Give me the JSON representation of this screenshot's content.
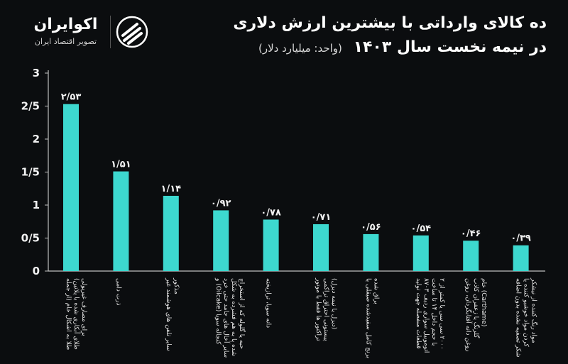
{
  "header": {
    "title_line1": "ده کالای وارداتی با بیشترین ارزش دلاری",
    "title_line2": "در نیمه نخست سال ۱۴۰۳",
    "unit": "(واحد: میلیارد دلار)"
  },
  "brand": {
    "name": "اکوایران",
    "tagline": "تصویر اقتصاد ایران",
    "logo_icon": "ecoiran-logo-icon"
  },
  "colors": {
    "bar": "#3dd8cf",
    "background": "#0b0d0f",
    "text": "#f2f2f2",
    "axis": "#bfbfbf"
  },
  "chart_data": {
    "type": "bar",
    "title": "ده کالای وارداتی با بیشترین ارزش دلاری در نیمه نخست سال ۱۴۰۳",
    "ylabel": "(واحد: میلیارد دلار)",
    "xlabel": "",
    "ylim": [
      0,
      3
    ],
    "yticks": [
      0,
      0.5,
      1,
      1.5,
      2,
      2.5,
      3
    ],
    "ytick_labels": [
      "0",
      "0/5",
      "1",
      "1/5",
      "2",
      "2/5",
      "3"
    ],
    "grid": false,
    "categories": [
      "طلا به اشکال خام (از جمله طلای آبکاری شده با پلاتین) برای مصارف غیرپولی",
      "ذرت دامی",
      "سایر تلفن های هوشمند غیر مذکور",
      "کنجاله سویا (Oilcake) و سایر آخال های جامد حتی خرد شده یا به هم فشرده به شکل حبه یا گلوله که از استخراج روغن سویا به دست می آید",
      "دانه سویا، ترازیخته",
      "تراکتور ها فقط با موتور پیستونی احتراق تراکمی (دیزل یا نیمه دیزل)",
      "برنج کامل سفیدشده صیقلی یا براق شده",
      "قطعات منفصله جهت تولید اتوموبیل سواری ردیف ۸۷۰۳ با حجم داخل ۱۴ تا ساخت ۲۰۰۰ سی سی یا کمتر از ۲ ۱۲۵۰ به استثنای لاستیک",
      "روغن دانه آفتابگردان، روغن گلرنگ یا زعفران کاذب (Carthame) خام",
      "شکر تصفیه نشده بدون اضافه کردن مواد خوشبو کننده یا مواد رنگ کننده از نیشکر"
    ],
    "values": [
      2.53,
      1.51,
      1.14,
      0.92,
      0.78,
      0.71,
      0.56,
      0.54,
      0.46,
      0.39
    ],
    "value_labels": [
      "۲/۵۳",
      "۱/۵۱",
      "۱/۱۴",
      "۰/۹۲",
      "۰/۷۸",
      "۰/۷۱",
      "۰/۵۶",
      "۰/۵۴",
      "۰/۴۶",
      "۰/۳۹"
    ]
  }
}
